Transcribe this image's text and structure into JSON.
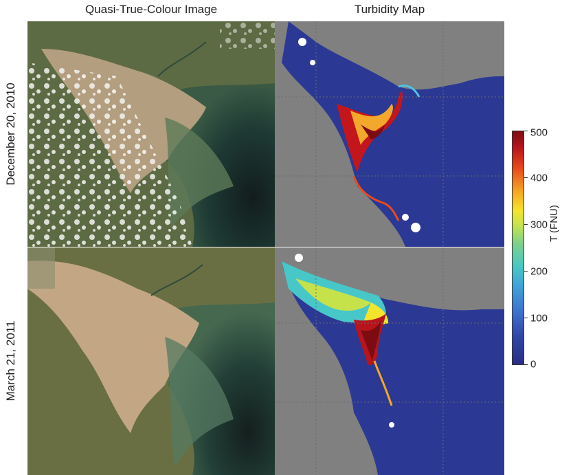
{
  "columns": {
    "left": "Quasi-True-Colour Image",
    "right": "Turbidity Map"
  },
  "rows": {
    "top": "December 20, 2010",
    "bottom": "March 21, 2011"
  },
  "colorbar": {
    "label": "T (FNU)",
    "ticks": [
      "500",
      "400",
      "300",
      "200",
      "100",
      "0"
    ],
    "range": [
      0,
      500
    ]
  },
  "colors": {
    "land_mask": "#808080",
    "low_turbidity": "#2a2e86",
    "high_turbidity": "#7d0c12",
    "river_sediment": "#b09a78",
    "ocean_true_colour": "#1f3a36"
  }
}
